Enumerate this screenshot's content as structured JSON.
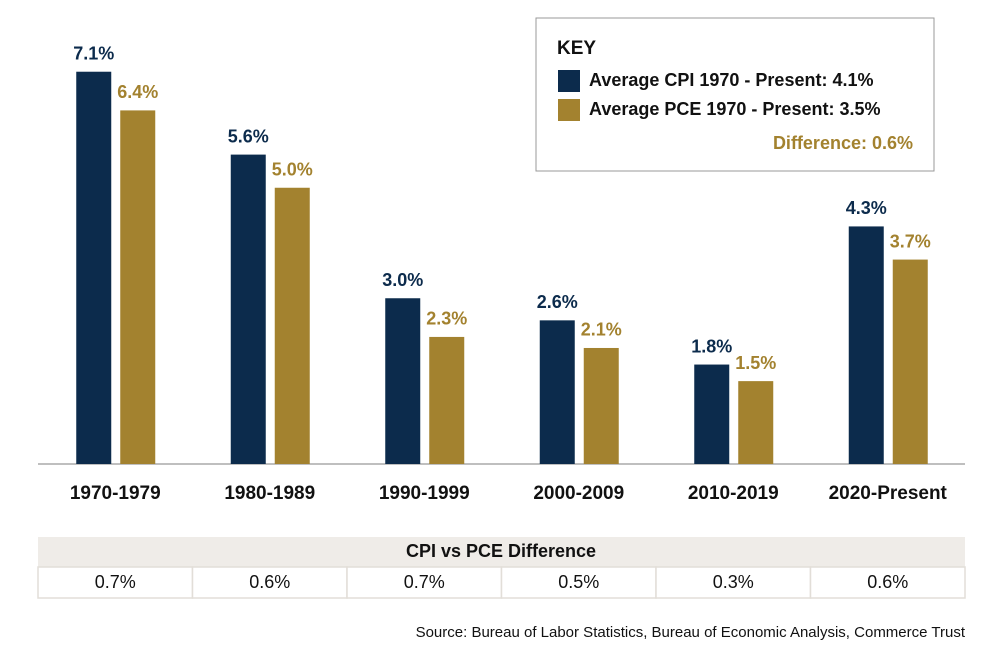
{
  "chart_data": {
    "type": "bar",
    "categories": [
      "1970-1979",
      "1980-1989",
      "1990-1999",
      "2000-2009",
      "2010-2019",
      "2020-Present"
    ],
    "series": [
      {
        "name": "Average CPI 1970 - Present: 4.1%",
        "color": "#0c2b4c",
        "values": [
          7.1,
          5.6,
          3.0,
          2.6,
          1.8,
          4.3
        ],
        "value_labels": [
          "7.1%",
          "5.6%",
          "3.0%",
          "2.6%",
          "1.8%",
          "4.3%"
        ]
      },
      {
        "name": "Average PCE 1970 - Present: 3.5%",
        "color": "#a3822f",
        "values": [
          6.4,
          5.0,
          2.3,
          2.1,
          1.5,
          3.7
        ],
        "value_labels": [
          "6.4%",
          "5.0%",
          "2.3%",
          "2.1%",
          "1.5%",
          "3.7%"
        ]
      }
    ],
    "ylim": [
      0,
      8
    ],
    "legend_title": "KEY",
    "legend_position": "upper right",
    "annotation": "Difference: 0.6%",
    "difference_table": {
      "title": "CPI vs PCE Difference",
      "cells": [
        "0.7%",
        "0.6%",
        "0.7%",
        "0.5%",
        "0.3%",
        "0.6%"
      ]
    },
    "source": "Source: Bureau of Labor Statistics, Bureau of Economic Analysis, Commerce Trust"
  }
}
